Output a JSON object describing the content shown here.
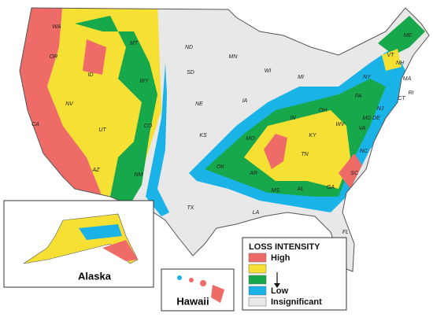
{
  "map": {
    "states": [
      "WA",
      "OR",
      "CA",
      "NV",
      "ID",
      "MT",
      "WY",
      "UT",
      "AZ",
      "CO",
      "NM",
      "ND",
      "SD",
      "NE",
      "KS",
      "OK",
      "TX",
      "MN",
      "IA",
      "MO",
      "AR",
      "LA",
      "WI",
      "MI",
      "IN",
      "OH",
      "KY",
      "TN",
      "MS",
      "AL",
      "GA",
      "FL",
      "SC",
      "NC",
      "VA",
      "WV",
      "PA",
      "NY",
      "VT",
      "NH",
      "ME",
      "MA",
      "CT",
      "RI",
      "NJ",
      "DE",
      "MD"
    ],
    "insets": {
      "alaska": "Alaska",
      "hawaii": "Hawaii"
    },
    "legend": {
      "title": "LOSS INTENSITY",
      "colors": [
        "#ef6b67",
        "#f7e034",
        "#16a84a",
        "#1ab3e8",
        "#e8e8e8"
      ],
      "labels": {
        "high": "High",
        "low": "Low",
        "insignificant": "Insignificant"
      }
    }
  }
}
